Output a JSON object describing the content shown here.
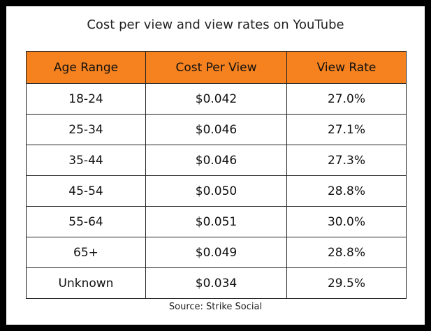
{
  "title": "Cost per view and view rates on YouTube",
  "table": {
    "header": [
      "Age Range",
      "Cost Per View",
      "View Rate"
    ],
    "rows": [
      [
        "18-24",
        "$0.042",
        "27.0%"
      ],
      [
        "25-34",
        "$0.046",
        "27.1%"
      ],
      [
        "35-44",
        "$0.046",
        "27.3%"
      ],
      [
        "45-54",
        "$0.050",
        "28.8%"
      ],
      [
        "55-64",
        "$0.051",
        "30.0%"
      ],
      [
        "65+",
        "$0.049",
        "28.8%"
      ],
      [
        "Unknown",
        "$0.034",
        "29.5%"
      ]
    ]
  },
  "source": "Source: Strike Social"
}
